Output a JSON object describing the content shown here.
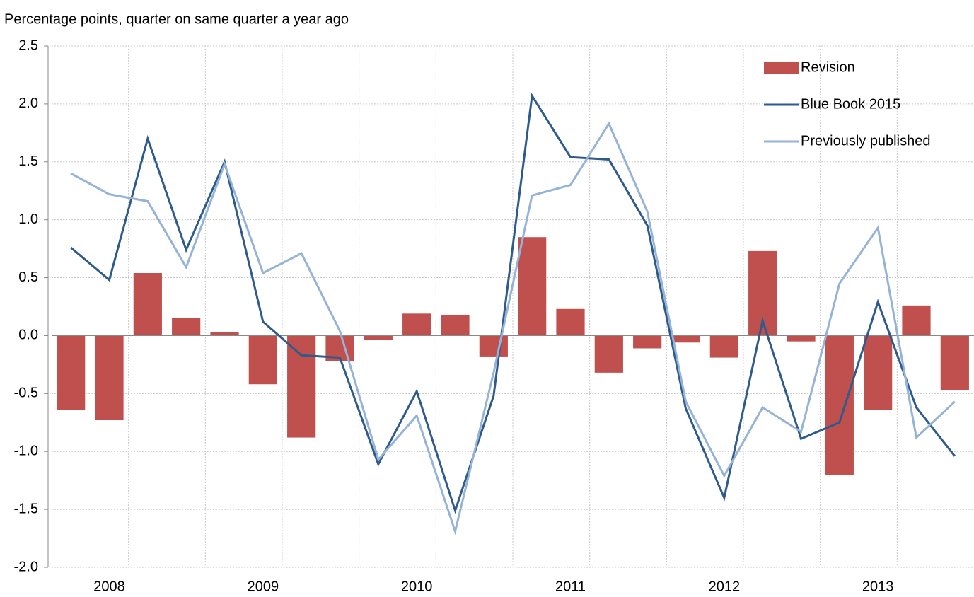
{
  "chart_data": {
    "type": "bar",
    "y_label": "Percentage points, quarter on same quarter a year ago",
    "categories": [
      null,
      "2008",
      null,
      null,
      null,
      "2009",
      null,
      null,
      null,
      "2010",
      null,
      null,
      null,
      "2011",
      null,
      null,
      null,
      "2012",
      null,
      null,
      null,
      "2013",
      null,
      null
    ],
    "series": [
      {
        "name": "Revision",
        "type": "bar",
        "color": "#c0504d",
        "values": [
          -0.64,
          -0.73,
          0.54,
          0.15,
          0.03,
          -0.42,
          -0.88,
          -0.22,
          -0.04,
          0.19,
          0.18,
          -0.18,
          0.85,
          0.23,
          -0.32,
          -0.11,
          -0.06,
          -0.19,
          0.73,
          -0.05,
          -1.2,
          -0.64,
          0.26,
          -0.47
        ]
      },
      {
        "name": "Blue Book 2015",
        "type": "line",
        "color": "#2f5b8c",
        "values": [
          0.76,
          0.48,
          1.7,
          0.74,
          1.5,
          0.12,
          -0.17,
          -0.19,
          -1.11,
          -0.48,
          -1.51,
          -0.52,
          2.07,
          1.54,
          1.52,
          0.95,
          -0.63,
          -1.4,
          0.13,
          -0.89,
          -0.75,
          0.29,
          -0.62,
          -1.04
        ]
      },
      {
        "name": "Previously published",
        "type": "line",
        "color": "#95b3d7",
        "values": [
          1.4,
          1.22,
          1.16,
          0.59,
          1.48,
          0.54,
          0.71,
          0.04,
          -1.07,
          -0.69,
          -1.69,
          -0.32,
          1.21,
          1.3,
          1.83,
          1.07,
          -0.57,
          -1.21,
          -0.62,
          -0.83,
          0.45,
          0.93,
          -0.88,
          -0.57
        ]
      }
    ],
    "ylim": [
      -2,
      2.5
    ],
    "yticks": [
      {
        "value": -2,
        "label": "-2.0"
      },
      -1.5,
      {
        "value": -1,
        "label": "-1.0"
      },
      -0.5,
      {
        "value": 0,
        "label": "0.0"
      },
      0.5,
      {
        "value": 1,
        "label": "1.0"
      },
      1.5,
      {
        "value": 2,
        "label": "2.0"
      },
      2.5
    ],
    "grid": true,
    "legend": "upper right"
  }
}
